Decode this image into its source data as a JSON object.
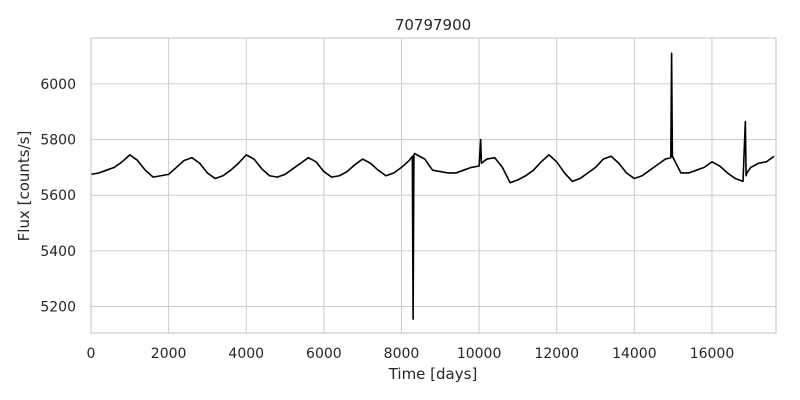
{
  "chart_data": {
    "type": "line",
    "title": "70797900",
    "xlabel": "Time [days]",
    "ylabel": "Flux [counts/s]",
    "xlim": [
      0,
      17650
    ],
    "ylim": [
      5105,
      6165
    ],
    "xticks": [
      0,
      2000,
      4000,
      6000,
      8000,
      10000,
      12000,
      14000,
      16000
    ],
    "yticks": [
      5200,
      5400,
      5600,
      5800,
      6000
    ],
    "grid": true,
    "legend": "none",
    "colors": {
      "line": "#000000",
      "grid": "#cccccc",
      "frame": "#cccccc"
    },
    "series": [
      {
        "x": [
          0,
          200,
          400,
          600,
          800,
          1000,
          1200,
          1400,
          1600,
          1800,
          2000,
          2200,
          2400,
          2600,
          2800,
          3000,
          3200,
          3400,
          3600,
          3800,
          4000,
          4200,
          4400,
          4600,
          4800,
          5000,
          5200,
          5400,
          5600,
          5800,
          6000,
          6200,
          6400,
          6600,
          6800,
          7000,
          7200,
          7400,
          7600,
          7800,
          8000,
          8200,
          8280,
          8300,
          8320,
          8340,
          8400,
          8600,
          8800,
          9000,
          9200,
          9400,
          9600,
          9800,
          10000,
          10040,
          10060,
          10200,
          10400,
          10600,
          10800,
          11000,
          11200,
          11400,
          11600,
          11800,
          12000,
          12200,
          12400,
          12600,
          12800,
          13000,
          13200,
          13400,
          13600,
          13800,
          14000,
          14200,
          14400,
          14600,
          14800,
          14940,
          14960,
          14980,
          15200,
          15400,
          15600,
          15800,
          16000,
          16200,
          16400,
          16600,
          16800,
          16860,
          16880,
          16900,
          17000,
          17200,
          17400,
          17600
        ],
        "y": [
          5675,
          5680,
          5690,
          5700,
          5720,
          5745,
          5725,
          5690,
          5665,
          5670,
          5675,
          5700,
          5725,
          5735,
          5715,
          5680,
          5660,
          5670,
          5690,
          5715,
          5745,
          5730,
          5695,
          5670,
          5665,
          5675,
          5695,
          5715,
          5735,
          5720,
          5685,
          5665,
          5670,
          5685,
          5710,
          5730,
          5715,
          5690,
          5670,
          5680,
          5700,
          5725,
          5740,
          5155,
          5745,
          5750,
          5745,
          5730,
          5690,
          5685,
          5680,
          5680,
          5690,
          5700,
          5705,
          5800,
          5715,
          5730,
          5735,
          5700,
          5645,
          5655,
          5670,
          5690,
          5720,
          5745,
          5720,
          5680,
          5650,
          5660,
          5680,
          5700,
          5730,
          5740,
          5715,
          5680,
          5660,
          5670,
          5690,
          5710,
          5730,
          5735,
          6110,
          5740,
          5680,
          5680,
          5690,
          5700,
          5720,
          5705,
          5680,
          5660,
          5650,
          5865,
          5670,
          5680,
          5700,
          5715,
          5720,
          5740
        ]
      }
    ]
  }
}
